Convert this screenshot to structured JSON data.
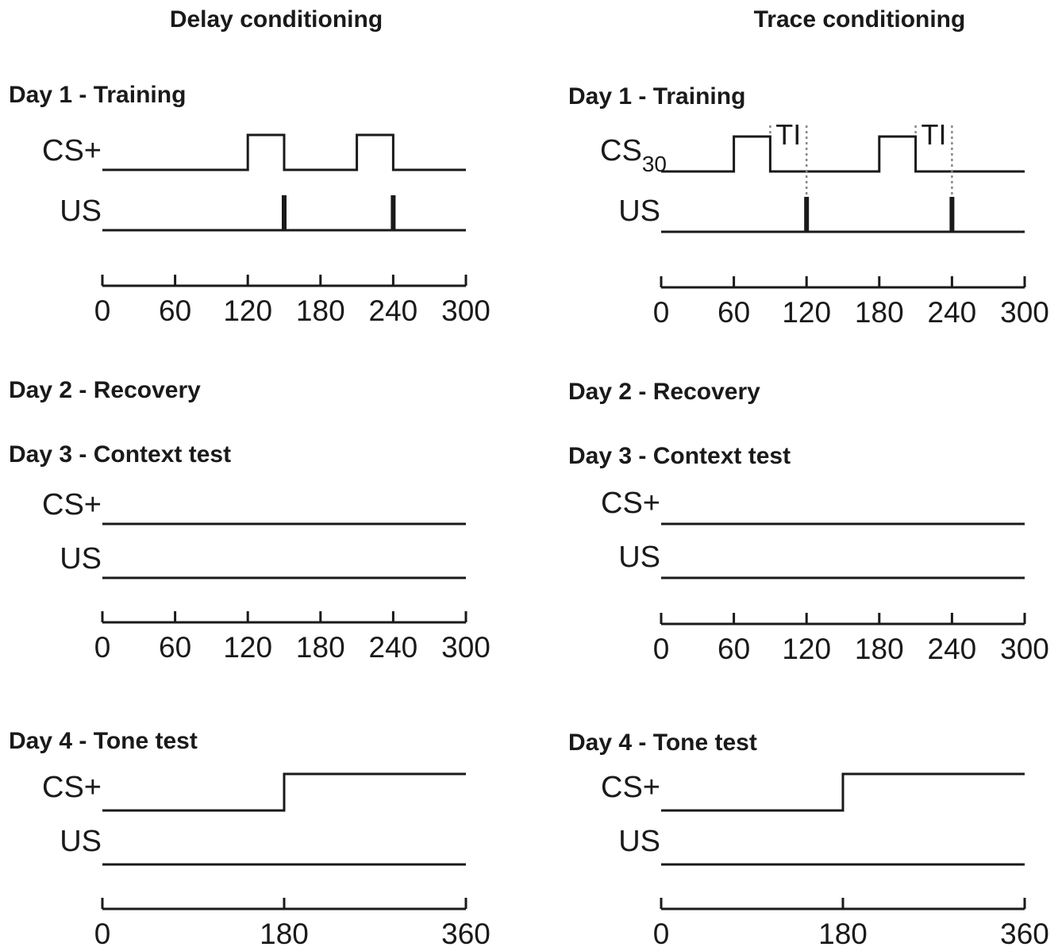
{
  "columns": [
    {
      "title": "Delay conditioning",
      "sessions": [
        {
          "title": "Day 1 - Training",
          "axis": {
            "max": 300,
            "ticks": [
              "0",
              "60",
              "120",
              "180",
              "240",
              "300"
            ]
          },
          "rows": [
            {
              "label": "CS+",
              "sub": "",
              "pulses": [
                [
                  120,
                  150
                ],
                [
                  210,
                  240
                ]
              ]
            },
            {
              "label": "US",
              "sub": "",
              "marks": [
                150,
                240
              ]
            }
          ]
        },
        {
          "title": "Day 2 - Recovery"
        },
        {
          "title": "Day 3 - Context test",
          "axis": {
            "max": 300,
            "ticks": [
              "0",
              "60",
              "120",
              "180",
              "240",
              "300"
            ]
          },
          "rows": [
            {
              "label": "CS+",
              "sub": ""
            },
            {
              "label": "US",
              "sub": ""
            }
          ]
        },
        {
          "title": "Day 4 - Tone test",
          "axis": {
            "max": 360,
            "ticks": [
              "0",
              "180",
              "360"
            ]
          },
          "rows": [
            {
              "label": "CS+",
              "sub": "",
              "step_on": 180
            },
            {
              "label": "US",
              "sub": ""
            }
          ]
        }
      ]
    },
    {
      "title": "Trace conditioning",
      "sessions": [
        {
          "title": "Day 1 - Training",
          "axis": {
            "max": 300,
            "ticks": [
              "0",
              "60",
              "120",
              "180",
              "240",
              "300"
            ]
          },
          "rows": [
            {
              "label": "CS",
              "sub": "30",
              "pulses": [
                [
                  60,
                  90
                ],
                [
                  180,
                  210
                ]
              ]
            },
            {
              "label": "US",
              "sub": "",
              "marks": [
                120,
                240
              ]
            }
          ],
          "trace_intervals": [
            {
              "label": "TI",
              "from": 90,
              "to": 120
            },
            {
              "label": "TI",
              "from": 210,
              "to": 240
            }
          ]
        },
        {
          "title": "Day 2 - Recovery"
        },
        {
          "title": "Day 3 - Context test",
          "axis": {
            "max": 300,
            "ticks": [
              "0",
              "60",
              "120",
              "180",
              "240",
              "300"
            ]
          },
          "rows": [
            {
              "label": "CS+",
              "sub": ""
            },
            {
              "label": "US",
              "sub": ""
            }
          ]
        },
        {
          "title": "Day 4 - Tone test",
          "axis": {
            "max": 360,
            "ticks": [
              "0",
              "180",
              "360"
            ]
          },
          "rows": [
            {
              "label": "CS+",
              "sub": "",
              "step_on": 180
            },
            {
              "label": "US",
              "sub": ""
            }
          ]
        }
      ]
    }
  ]
}
